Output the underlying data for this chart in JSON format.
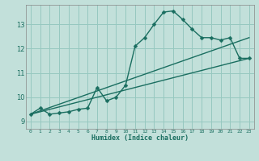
{
  "title": "",
  "xlabel": "Humidex (Indice chaleur)",
  "ylabel": "",
  "bg_color": "#c2e0da",
  "grid_color": "#96c8c0",
  "line_color": "#1a6e60",
  "xlim": [
    -0.5,
    23.5
  ],
  "ylim": [
    8.7,
    13.8
  ],
  "xticks": [
    0,
    1,
    2,
    3,
    4,
    5,
    6,
    7,
    8,
    9,
    10,
    11,
    12,
    13,
    14,
    15,
    16,
    17,
    18,
    19,
    20,
    21,
    22,
    23
  ],
  "yticks": [
    9,
    10,
    11,
    12,
    13
  ],
  "line1_x": [
    0,
    1,
    2,
    3,
    4,
    5,
    6,
    7,
    8,
    9,
    10,
    11,
    12,
    13,
    14,
    15,
    16,
    17,
    18,
    19,
    20,
    21,
    22,
    23
  ],
  "line1_y": [
    9.3,
    9.55,
    9.3,
    9.35,
    9.4,
    9.5,
    9.55,
    10.4,
    9.85,
    10.0,
    10.5,
    12.1,
    12.45,
    13.0,
    13.5,
    13.55,
    13.2,
    12.8,
    12.45,
    12.45,
    12.35,
    12.45,
    11.6,
    11.6
  ],
  "line2_x": [
    0,
    23
  ],
  "line2_y": [
    9.3,
    12.45
  ],
  "line3_x": [
    0,
    23
  ],
  "line3_y": [
    9.3,
    11.6
  ],
  "marker_size": 2.5,
  "line_width": 1.0
}
